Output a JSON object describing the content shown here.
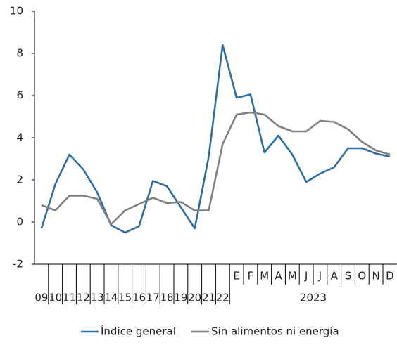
{
  "chart_data": {
    "type": "line",
    "categories": [
      "09",
      "10",
      "11",
      "12",
      "13",
      "14",
      "15",
      "16",
      "17",
      "18",
      "19",
      "20",
      "21",
      "22",
      "E",
      "F",
      "M",
      "A",
      "M",
      "J",
      "J",
      "A",
      "S",
      "O",
      "N",
      "D"
    ],
    "year_label": "2023",
    "series": [
      {
        "name": "Índice general",
        "color": "#2e6da4",
        "values": [
          -0.3,
          1.8,
          3.2,
          2.5,
          1.4,
          -0.15,
          -0.5,
          -0.2,
          1.95,
          1.7,
          0.7,
          -0.3,
          3.1,
          8.4,
          5.9,
          6.05,
          3.3,
          4.1,
          3.2,
          1.9,
          2.3,
          2.6,
          3.5,
          3.5,
          3.25,
          3.1
        ]
      },
      {
        "name": "Sin alimentos ni energía",
        "color": "#7f7f7f",
        "values": [
          0.8,
          0.55,
          1.25,
          1.25,
          1.1,
          -0.1,
          0.55,
          0.85,
          1.15,
          0.9,
          0.95,
          0.55,
          0.55,
          3.7,
          5.1,
          5.2,
          5.1,
          4.55,
          4.3,
          4.3,
          4.8,
          4.75,
          4.4,
          3.8,
          3.4,
          3.2
        ]
      }
    ],
    "ylim": [
      -2,
      10
    ],
    "yticks": [
      -2,
      0,
      2,
      4,
      6,
      8,
      10
    ],
    "grid": false
  }
}
